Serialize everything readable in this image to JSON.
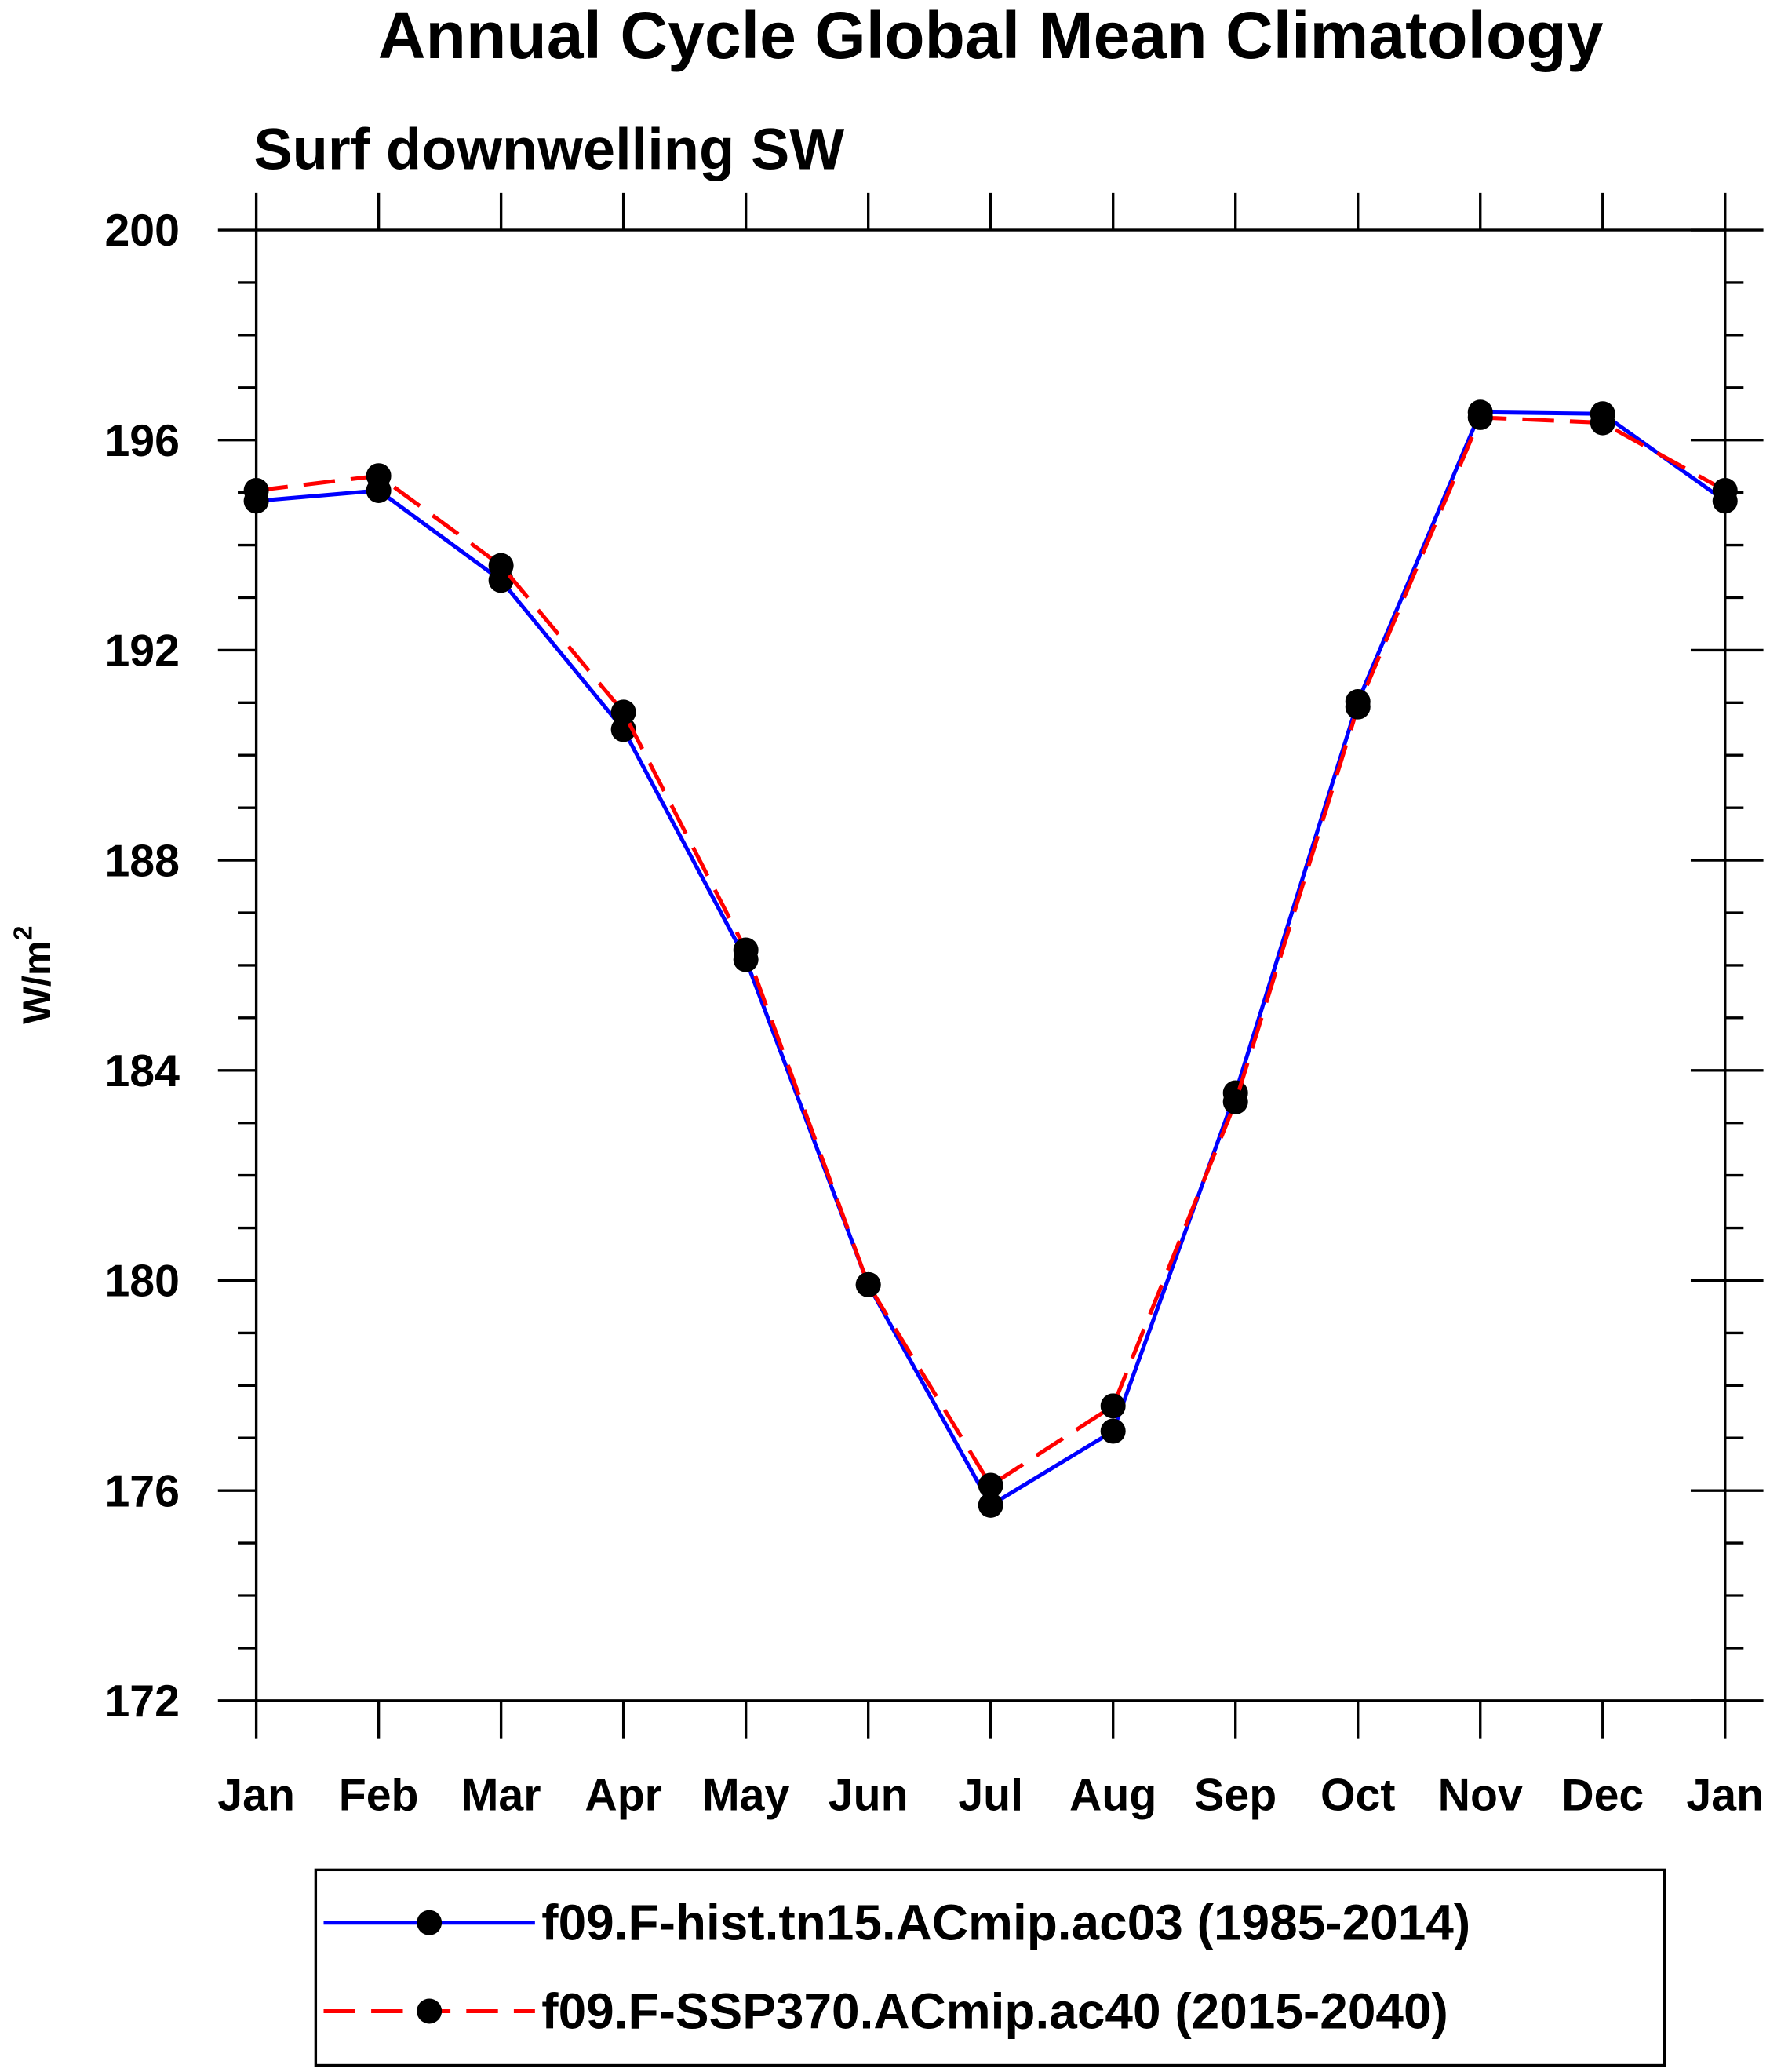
{
  "chart_data": {
    "type": "line",
    "title": "Annual Cycle Global Mean Climatology",
    "subtitle": "Surf downwelling SW",
    "xlabel": "",
    "ylabel": "W/m",
    "ylabel_sup": "2",
    "categories": [
      "Jan",
      "Feb",
      "Mar",
      "Apr",
      "May",
      "Jun",
      "Jul",
      "Aug",
      "Sep",
      "Oct",
      "Nov",
      "Dec",
      "Jan"
    ],
    "ylim": [
      172,
      200
    ],
    "yticks": [
      172,
      176,
      180,
      184,
      188,
      192,
      196,
      200
    ],
    "yminor_step": 1,
    "grid": false,
    "legend_position": "bottom",
    "series": [
      {
        "name": "f09.F-hist.tn15.ACmip.ac03 (1985-2014)",
        "color": "#0000ff",
        "dash": "solid",
        "values": [
          194.84,
          195.04,
          193.33,
          190.49,
          186.11,
          179.92,
          175.72,
          177.13,
          183.57,
          191.02,
          196.53,
          196.5,
          194.84
        ]
      },
      {
        "name": "f09.F-SSP370.ACmip.ac40 (2015-2040)",
        "color": "#ff0000",
        "dash": "dashed",
        "values": [
          195.04,
          195.32,
          193.61,
          190.82,
          186.29,
          179.92,
          176.1,
          177.61,
          183.4,
          190.92,
          196.43,
          196.33,
          195.04
        ]
      }
    ]
  }
}
